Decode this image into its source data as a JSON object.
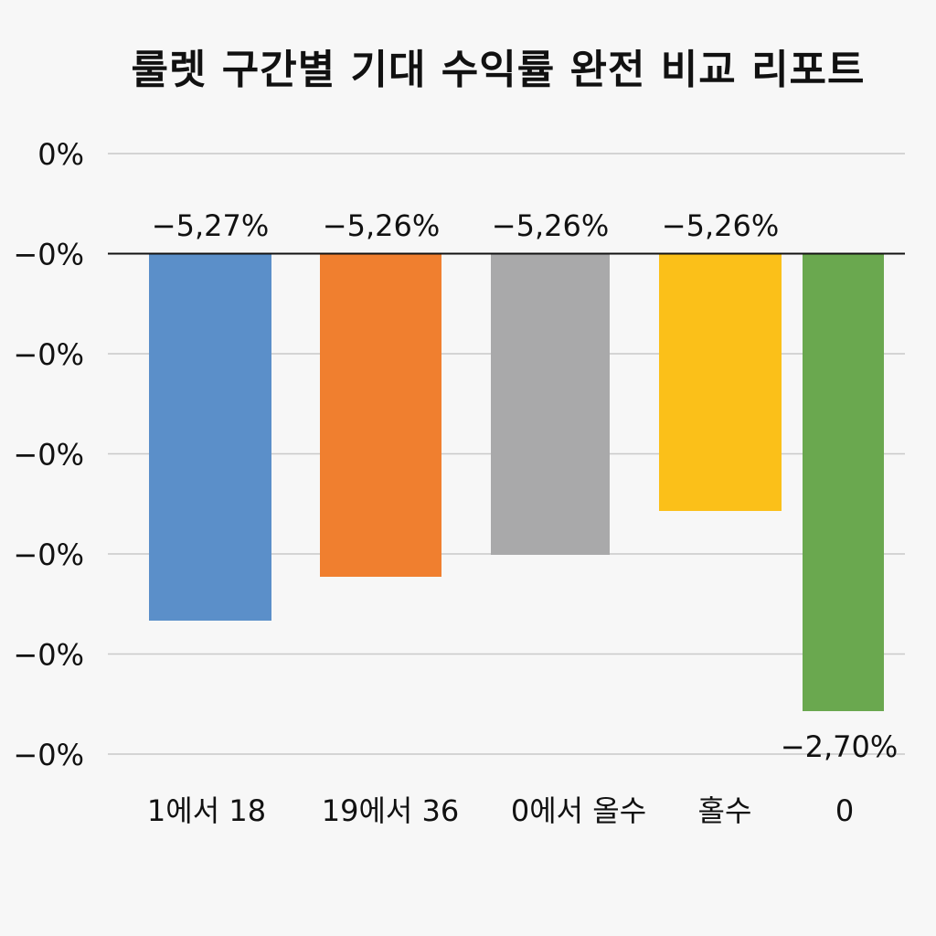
{
  "chart_data": {
    "type": "bar",
    "title": "룰렛 구간별 기대 수익률 완전 비교 리포트",
    "xlabel": "",
    "ylabel": "",
    "categories": [
      "1에서 18",
      "19에서 36",
      "0에서 올수",
      "홀수",
      "0"
    ],
    "values": [
      -5.27,
      -5.26,
      -5.26,
      -5.26,
      -2.7
    ],
    "data_labels": [
      "−5,27%",
      "−5,26%",
      "−5,26%",
      "−5,26%",
      "−2,70%"
    ],
    "y_tick_labels": [
      "0%",
      "−0%",
      "−0%",
      "−0%",
      "−0%",
      "−0%",
      "−0%"
    ],
    "colors": [
      "#5b8fc9",
      "#f07f2f",
      "#a9a9aa",
      "#fbc019",
      "#6aa84f"
    ],
    "grid": true,
    "legend": "none"
  }
}
